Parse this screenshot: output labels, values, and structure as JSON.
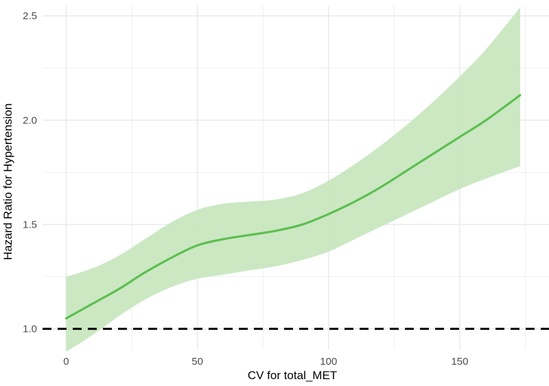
{
  "chart_data": {
    "type": "line",
    "title": "",
    "xlabel": "CV for total_MET",
    "ylabel": "Hazard Ratio for Hypertension",
    "xlim": [
      -9,
      184
    ],
    "ylim": [
      0.9,
      2.55
    ],
    "x_ticks": [
      0,
      50,
      100,
      150
    ],
    "y_ticks": [
      1.0,
      1.5,
      2.0,
      2.5
    ],
    "x_tick_labels": [
      "0",
      "50",
      "100",
      "150"
    ],
    "y_tick_labels": [
      "1.0",
      "1.5",
      "2.0",
      "2.5"
    ],
    "grid": true,
    "legend": "none",
    "reference_line": {
      "y": 1.0,
      "style": "dashed",
      "color": "#000000"
    },
    "colors": {
      "line": "#5cbf4f",
      "band": "#c5e5bd",
      "grid": "#ebebeb"
    },
    "series": [
      {
        "x": [
          0,
          10,
          20,
          30,
          40,
          50,
          60,
          70,
          80,
          90,
          100,
          110,
          120,
          130,
          140,
          150,
          160,
          173
        ],
        "y": [
          1.05,
          1.12,
          1.19,
          1.27,
          1.34,
          1.4,
          1.43,
          1.45,
          1.47,
          1.5,
          1.55,
          1.61,
          1.68,
          1.76,
          1.84,
          1.92,
          2.0,
          2.12
        ],
        "lower": [
          0.89,
          0.97,
          1.06,
          1.14,
          1.2,
          1.24,
          1.26,
          1.28,
          1.3,
          1.33,
          1.37,
          1.43,
          1.49,
          1.55,
          1.61,
          1.67,
          1.72,
          1.78
        ],
        "upper": [
          1.25,
          1.29,
          1.35,
          1.43,
          1.51,
          1.57,
          1.6,
          1.61,
          1.62,
          1.65,
          1.71,
          1.79,
          1.88,
          1.98,
          2.09,
          2.21,
          2.34,
          2.54
        ]
      }
    ]
  }
}
